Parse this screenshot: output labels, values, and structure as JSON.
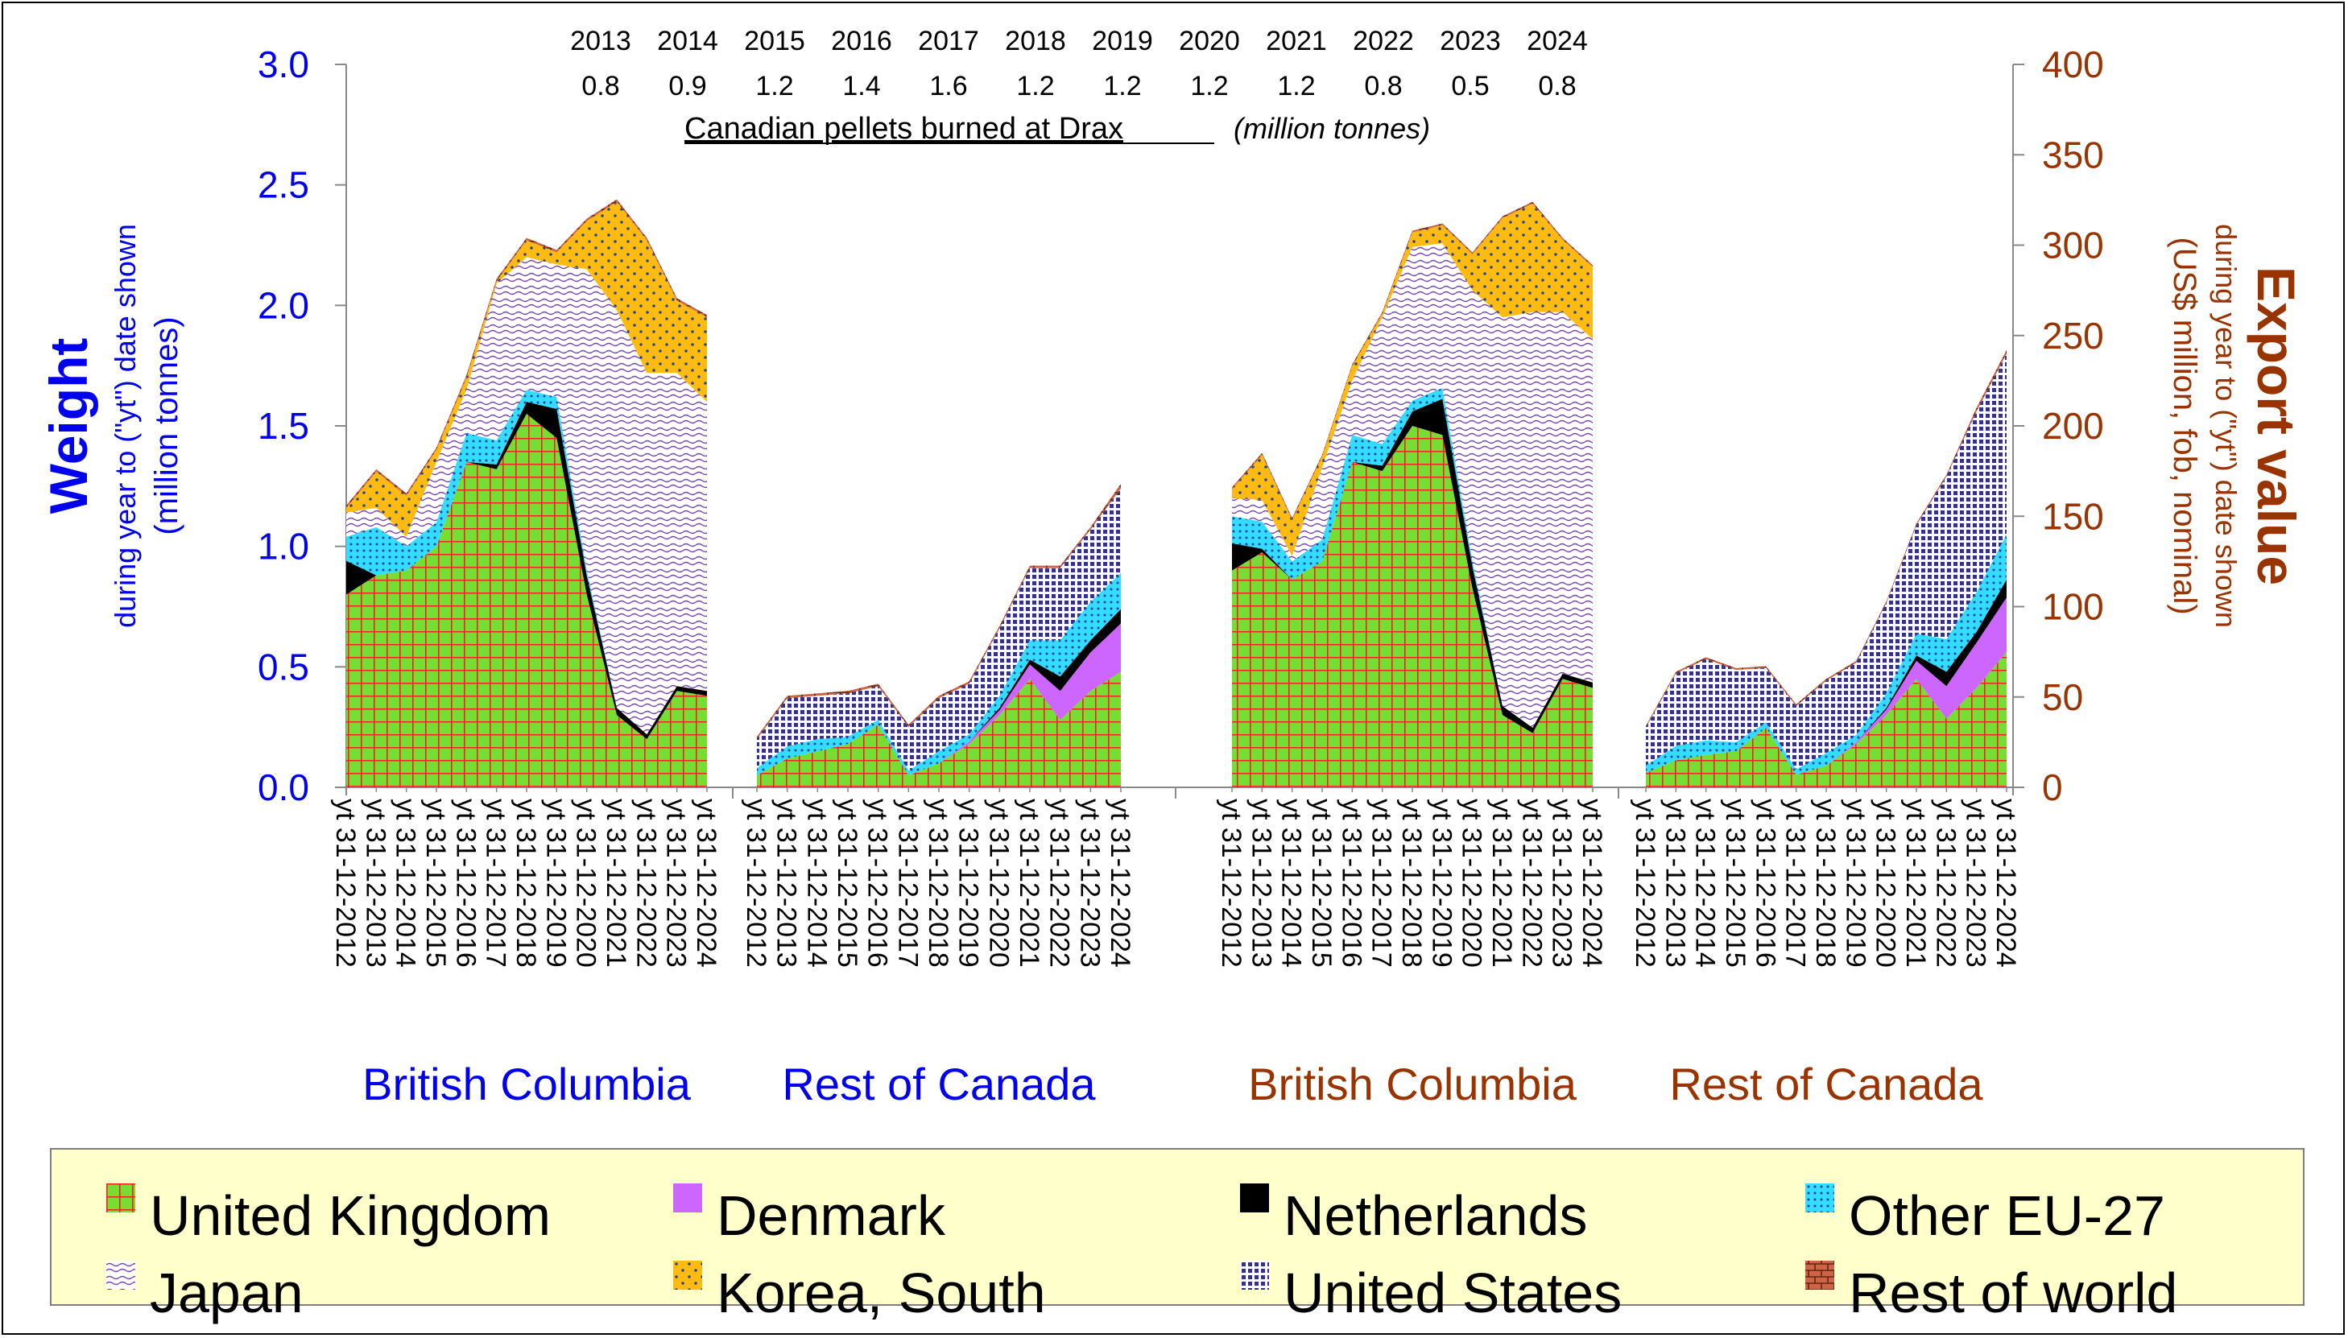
{
  "chart_data": {
    "type": "area",
    "title": "Canadian pellets burned at Drax",
    "title_unit": "(million tonnes)",
    "drax_burn": {
      "years": [
        "2013",
        "2014",
        "2015",
        "2016",
        "2017",
        "2018",
        "2019",
        "2020",
        "2021",
        "2022",
        "2023",
        "2024"
      ],
      "values": [
        "0.8",
        "0.9",
        "1.2",
        "1.4",
        "1.6",
        "1.2",
        "1.2",
        "1.2",
        "1.2",
        "0.8",
        "0.5",
        "0.8"
      ]
    },
    "left_axis": {
      "title": "Weight",
      "subtitle1": "during year to (\"yt\") date shown",
      "subtitle2": "(million tonnes)",
      "ticks": [
        "0.0",
        "0.5",
        "1.0",
        "1.5",
        "2.0",
        "2.5",
        "3.0"
      ],
      "range": [
        0,
        3.0
      ],
      "color": "#0000ee"
    },
    "right_axis": {
      "title": "Export value",
      "subtitle1": "during year to (\"yt\") date shown",
      "subtitle2": "(US$ million, fob, nominal)",
      "ticks": [
        "0",
        "50",
        "100",
        "150",
        "200",
        "250",
        "300",
        "350",
        "400"
      ],
      "range": [
        0,
        400
      ],
      "color": "#993300"
    },
    "x_tick_labels": [
      "yt 31-12-2012",
      "yt 31-12-2013",
      "yt 31-12-2014",
      "yt 31-12-2015",
      "yt 31-12-2016",
      "yt 31-12-2017",
      "yt 31-12-2018",
      "yt 31-12-2019",
      "yt 31-12-2020",
      "yt 31-12-2021",
      "yt 31-12-2022",
      "yt 31-12-2023",
      "yt 31-12-2024"
    ],
    "panels": [
      {
        "label": "British Columbia",
        "axis": "left",
        "label_color": "#0000ee",
        "stacks": [
          {
            "country": "United Kingdom",
            "values": [
              0.8,
              0.88,
              0.9,
              1.0,
              1.35,
              1.32,
              1.55,
              1.45,
              0.8,
              0.3,
              0.2,
              0.4,
              0.38
            ]
          },
          {
            "country": "Netherlands",
            "values": [
              0.14,
              0.0,
              0.0,
              0.0,
              0.0,
              0.02,
              0.05,
              0.12,
              0.08,
              0.03,
              0.02,
              0.02,
              0.02
            ]
          },
          {
            "country": "Other EU-27",
            "values": [
              0.1,
              0.2,
              0.1,
              0.1,
              0.12,
              0.1,
              0.05,
              0.05,
              0.02,
              0.0,
              0.0,
              0.0,
              0.0
            ]
          },
          {
            "country": "Japan",
            "values": [
              0.1,
              0.08,
              0.04,
              0.25,
              0.18,
              0.65,
              0.55,
              0.55,
              1.25,
              1.65,
              1.5,
              1.3,
              1.2
            ]
          },
          {
            "country": "Korea, South",
            "values": [
              0.02,
              0.15,
              0.17,
              0.05,
              0.05,
              0.01,
              0.07,
              0.05,
              0.2,
              0.45,
              0.55,
              0.3,
              0.35
            ]
          },
          {
            "country": "Rest of world",
            "values": [
              0.01,
              0.01,
              0.01,
              0.01,
              0.01,
              0.01,
              0.01,
              0.01,
              0.01,
              0.01,
              0.01,
              0.01,
              0.01
            ]
          }
        ]
      },
      {
        "label": "Rest of Canada",
        "axis": "left",
        "label_color": "#0000ee",
        "stacks": [
          {
            "country": "United Kingdom",
            "values": [
              0.05,
              0.12,
              0.15,
              0.18,
              0.26,
              0.05,
              0.1,
              0.18,
              0.3,
              0.45,
              0.28,
              0.4,
              0.48
            ]
          },
          {
            "country": "Denmark",
            "values": [
              0.0,
              0.0,
              0.0,
              0.0,
              0.0,
              0.0,
              0.0,
              0.01,
              0.02,
              0.06,
              0.12,
              0.16,
              0.2
            ]
          },
          {
            "country": "Netherlands",
            "values": [
              0.0,
              0.0,
              0.0,
              0.0,
              0.0,
              0.0,
              0.0,
              0.0,
              0.01,
              0.02,
              0.06,
              0.05,
              0.06
            ]
          },
          {
            "country": "Other EU-27",
            "values": [
              0.03,
              0.05,
              0.05,
              0.03,
              0.02,
              0.02,
              0.05,
              0.03,
              0.05,
              0.08,
              0.15,
              0.16,
              0.15
            ]
          },
          {
            "country": "United States",
            "values": [
              0.12,
              0.2,
              0.18,
              0.18,
              0.14,
              0.18,
              0.22,
              0.21,
              0.28,
              0.3,
              0.3,
              0.3,
              0.35
            ]
          },
          {
            "country": "Rest of world",
            "values": [
              0.01,
              0.01,
              0.01,
              0.01,
              0.01,
              0.01,
              0.01,
              0.01,
              0.01,
              0.01,
              0.01,
              0.01,
              0.02
            ]
          }
        ]
      },
      {
        "label": "British Columbia",
        "axis": "right",
        "label_color": "#993300",
        "stacks": [
          {
            "country": "United Kingdom",
            "values": [
              120,
              130,
              115,
              125,
              180,
              175,
              200,
              195,
              110,
              40,
              30,
              60,
              55
            ]
          },
          {
            "country": "Netherlands",
            "values": [
              15,
              2,
              0,
              0,
              0,
              3,
              8,
              20,
              12,
              5,
              3,
              3,
              3
            ]
          },
          {
            "country": "Other EU-27",
            "values": [
              15,
              15,
              10,
              12,
              15,
              12,
              6,
              6,
              3,
              0,
              0,
              0,
              0
            ]
          },
          {
            "country": "Japan",
            "values": [
              10,
              12,
              3,
              40,
              30,
              70,
              85,
              80,
              150,
              215,
              230,
              200,
              190
            ]
          },
          {
            "country": "Korea, South",
            "values": [
              5,
              25,
              20,
              6,
              8,
              2,
              8,
              10,
              20,
              55,
              60,
              40,
              40
            ]
          },
          {
            "country": "Rest of world",
            "values": [
              1,
              1,
              1,
              1,
              1,
              1,
              1,
              1,
              1,
              1,
              1,
              1,
              1
            ]
          }
        ]
      },
      {
        "label": "Rest of Canada",
        "axis": "right",
        "label_color": "#993300",
        "stacks": [
          {
            "country": "United Kingdom",
            "values": [
              8,
              15,
              18,
              20,
              33,
              7,
              12,
              24,
              40,
              60,
              38,
              55,
              75
            ]
          },
          {
            "country": "Denmark",
            "values": [
              0,
              0,
              0,
              0,
              0,
              0,
              0,
              1,
              3,
              10,
              18,
              25,
              30
            ]
          },
          {
            "country": "Netherlands",
            "values": [
              0,
              0,
              0,
              0,
              0,
              0,
              0,
              0,
              1,
              3,
              8,
              6,
              10
            ]
          },
          {
            "country": "Other EU-27",
            "values": [
              4,
              8,
              8,
              5,
              3,
              3,
              7,
              4,
              8,
              12,
              18,
              22,
              25
            ]
          },
          {
            "country": "United States",
            "values": [
              21,
              40,
              45,
              40,
              30,
              35,
              40,
              40,
              50,
              60,
              90,
              100,
              100
            ]
          },
          {
            "country": "Rest of world",
            "values": [
              1,
              1,
              1,
              1,
              1,
              1,
              1,
              1,
              1,
              1,
              1,
              2,
              2
            ]
          }
        ]
      }
    ],
    "legend": [
      {
        "name": "United Kingdom",
        "color": "#77dd33",
        "pattern": "grid-red"
      },
      {
        "name": "Denmark",
        "color": "#cc66ff",
        "pattern": "solid"
      },
      {
        "name": "Netherlands",
        "color": "#000000",
        "pattern": "solid"
      },
      {
        "name": "Other EU-27",
        "color": "#33ddff",
        "pattern": "dots-blue"
      },
      {
        "name": "Japan",
        "color": "#ffffff",
        "pattern": "wave-purple"
      },
      {
        "name": "Korea, South",
        "color": "#ffbb11",
        "pattern": "dots-dark"
      },
      {
        "name": "United States",
        "color": "#ffffff",
        "pattern": "grid-navy"
      },
      {
        "name": "Rest of world",
        "color": "#cc6644",
        "pattern": "brick"
      }
    ],
    "legend_placement": "bottom",
    "grid": false
  }
}
